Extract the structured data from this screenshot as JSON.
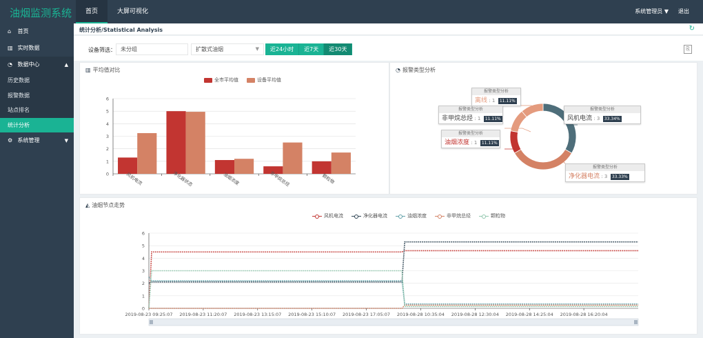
{
  "header": {
    "logo": "油烟监测系统",
    "nav": [
      {
        "label": "首页",
        "active": true
      },
      {
        "label": "大屏可视化",
        "active": false
      }
    ],
    "user": "系统管理员 ▼",
    "logout": "退出"
  },
  "sidebar": {
    "items": [
      {
        "label": "首页",
        "icon": "home-icon",
        "glyph": "⌂"
      },
      {
        "label": "实时数据",
        "icon": "bar-chart-icon",
        "glyph": "▥"
      },
      {
        "label": "数据中心",
        "icon": "pie-chart-icon",
        "glyph": "◔",
        "caret": "▲"
      }
    ],
    "sub_items": [
      {
        "label": "历史数据",
        "active": false
      },
      {
        "label": "报警数据",
        "active": false
      },
      {
        "label": "站点排名",
        "active": false
      },
      {
        "label": "统计分析",
        "active": true
      }
    ],
    "last_item": {
      "label": "系统管理",
      "icon": "gears-icon",
      "glyph": "⚙",
      "caret": "▼"
    }
  },
  "page": {
    "title": "统计分析/Statistical Analysis",
    "refresh_glyph": "↻"
  },
  "filter": {
    "label": "设备筛选：",
    "group_value": "未分组",
    "device_value": "扩散式油烟",
    "select_arrow": "▼",
    "ranges": [
      {
        "label": "近24小时",
        "active": false
      },
      {
        "label": "近7天",
        "active": false
      },
      {
        "label": "近30天",
        "active": true
      }
    ],
    "export_glyph": "⎘"
  },
  "colors": {
    "accent": "#1ab394",
    "sidebar": "#2f4050",
    "bar_city": "#c23531",
    "bar_device": "#d48265",
    "donut_teal": "#4e6e7a",
    "donut_salmon": "#d48265",
    "donut_red": "#c23531",
    "donut_orange": "#e49b7e"
  },
  "bar_panel": {
    "title": "平均值对比",
    "icon": "bar-chart-icon",
    "glyph": "▥"
  },
  "pie_panel": {
    "title": "报警类型分析",
    "icon": "pie-chart-icon",
    "glyph": "◔",
    "tooltips": [
      {
        "header": "报警类型分析",
        "name": "离线",
        "count": "1",
        "percent": "11.11%",
        "color": "#e49b7e"
      },
      {
        "header": "报警类型分析",
        "name": "非甲烷总烃",
        "count": "1",
        "percent": "11.11%",
        "color": "#444444"
      },
      {
        "header": "报警类型分析",
        "name": "油烟浓度",
        "count": "1",
        "percent": "11.11%",
        "color": "#c23531"
      },
      {
        "header": "报警类型分析",
        "name": "风机电流",
        "count": "3",
        "percent": "33.34%",
        "color": "#444444"
      },
      {
        "header": "报警类型分析",
        "name": "净化器电流",
        "count": "3",
        "percent": "33.33%",
        "color": "#d48265"
      }
    ]
  },
  "line_panel": {
    "title": "油烟节点走势",
    "icon": "area-chart-icon",
    "glyph": "◭"
  },
  "chart_data": [
    {
      "type": "bar",
      "categories": [
        "风机电流",
        "净化器状态",
        "油烟浓度",
        "非甲烷总烃",
        "颗粒物"
      ],
      "series": [
        {
          "name": "全市平均值",
          "color": "#c23531",
          "values": [
            1.3,
            5.0,
            1.1,
            0.6,
            1.0
          ]
        },
        {
          "name": "设备平均值",
          "color": "#d48265",
          "values": [
            3.25,
            4.95,
            1.2,
            2.5,
            1.7
          ]
        }
      ],
      "ylim": [
        0,
        6
      ],
      "yticks": [
        "0",
        "1",
        "2",
        "3",
        "4",
        "5",
        "6"
      ],
      "legend_position": "top"
    },
    {
      "type": "pie",
      "donut": true,
      "slices": [
        {
          "name": "风机电流",
          "value": 3,
          "color": "#4e6e7a"
        },
        {
          "name": "净化器电流",
          "value": 3,
          "color": "#d48265"
        },
        {
          "name": "油烟浓度",
          "value": 1,
          "color": "#c23531"
        },
        {
          "name": "非甲烷总烃",
          "value": 1,
          "color": "#e49b7e"
        },
        {
          "name": "离线",
          "value": 1,
          "color": "#e49b7e"
        }
      ]
    },
    {
      "type": "line",
      "ylim": [
        0,
        6
      ],
      "yticks": [
        "0",
        "1",
        "2",
        "3",
        "4",
        "5",
        "6"
      ],
      "xticks": [
        "2019-08-23 09:25:07",
        "2019-08-23 11:20:07",
        "2019-08-23 13:15:07",
        "2019-08-23 15:10:07",
        "2019-08-23 17:05:07",
        "2019-08-28 10:35:04",
        "2019-08-28 12:30:04",
        "2019-08-28 14:25:04",
        "2019-08-28 16:20:04"
      ],
      "break_fraction": 0.52,
      "legend_position": "top",
      "series": [
        {
          "name": "风机电流",
          "color": "#c23531",
          "start": 0,
          "before": 4.5,
          "after": 4.6
        },
        {
          "name": "净化器电流",
          "color": "#2f4554",
          "start": 2.0,
          "before": 2.1,
          "after": 5.3
        },
        {
          "name": "油烟浓度",
          "color": "#61a0a8",
          "start": 2.5,
          "before": 2.2,
          "after": 0.35
        },
        {
          "name": "非甲烷总烃",
          "color": "#d48265",
          "start": 0,
          "before": 0,
          "after": 0.25
        },
        {
          "name": "颗粒物",
          "color": "#91c7ae",
          "start": 0,
          "before": 3.0,
          "after": 0.15
        }
      ]
    }
  ]
}
